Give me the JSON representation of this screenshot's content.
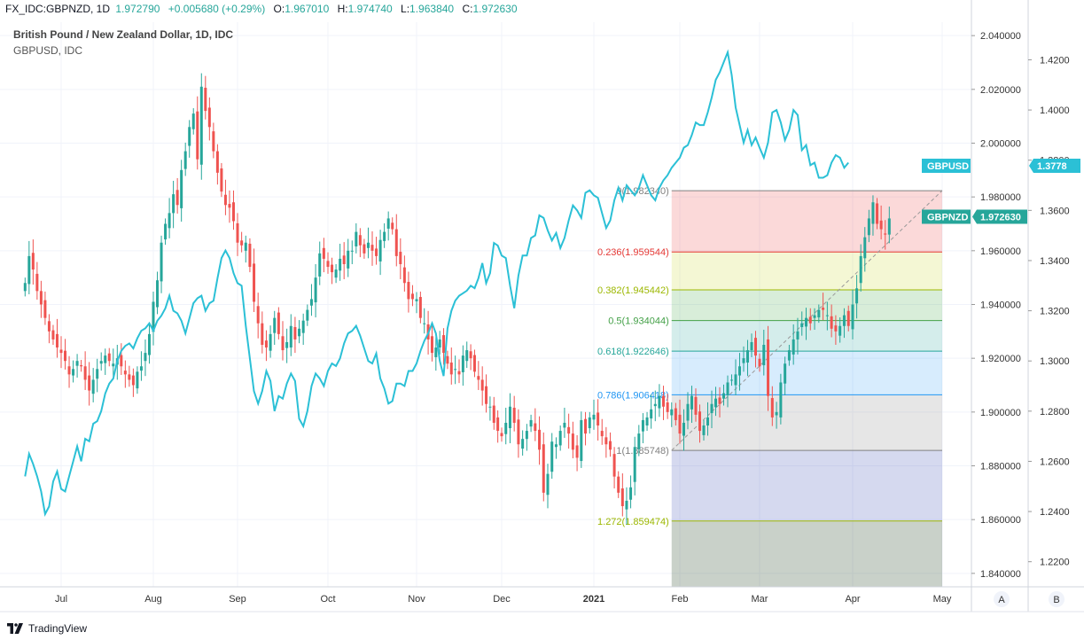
{
  "header": {
    "symbol": "FX_IDC:GBPNZD, 1D",
    "last": "1.972790",
    "change": "+0.005680 (+0.29%)",
    "open_label": "O:",
    "open": "1.967010",
    "high_label": "H:",
    "high": "1.974740",
    "low_label": "L:",
    "low": "1.963840",
    "close_label": "C:",
    "close": "1.972630"
  },
  "legend": {
    "title": "British Pound / New Zealand Dollar, 1D, IDC",
    "overlay": "GBPUSD, IDC"
  },
  "footer": {
    "brand": "TradingView"
  },
  "scale_buttons": [
    "A",
    "B"
  ],
  "colors": {
    "up": "#26a69a",
    "down": "#ef5350",
    "overlay": "#2bc0d6",
    "badge_nzd": "#26a69a",
    "badge_usd": "#2bc0d6"
  },
  "chart_data": {
    "type": "candlestick",
    "title": "British Pound / New Zealand Dollar, 1D, IDC",
    "x_ticks": [
      "Jul",
      "Aug",
      "Sep",
      "Oct",
      "Nov",
      "Dec",
      "2021",
      "Feb",
      "Mar",
      "Apr",
      "May"
    ],
    "y_left_ticks": [
      "2.040000",
      "2.020000",
      "2.000000",
      "1.980000",
      "1.960000",
      "1.940000",
      "1.920000",
      "1.900000",
      "1.880000",
      "1.860000",
      "1.840000"
    ],
    "y_right_ticks": [
      "1.4200",
      "1.4000",
      "1.3800",
      "1.3600",
      "1.3400",
      "1.3200",
      "1.3000",
      "1.2800",
      "1.2600",
      "1.2400",
      "1.2200"
    ],
    "ylim_gbpnzd": [
      1.835,
      2.045
    ],
    "ylim_gbpusd": [
      1.21,
      1.435
    ],
    "month_start_index": {
      "Jul": 9,
      "Aug": 32,
      "Sep": 53,
      "Oct": 75,
      "Nov": 97,
      "Dec": 119,
      "2021": 141,
      "Feb": 162,
      "Mar": 182,
      "Apr": 204,
      "May": 226
    },
    "last_index": 204,
    "gbpnzd_series": {
      "name": "GBPNZD",
      "close": [
        1.948,
        1.958,
        1.953,
        1.945,
        1.94,
        1.935,
        1.93,
        1.927,
        1.924,
        1.922,
        1.919,
        1.914,
        1.916,
        1.919,
        1.917,
        1.912,
        1.908,
        1.912,
        1.916,
        1.919,
        1.921,
        1.919,
        1.918,
        1.92,
        1.917,
        1.914,
        1.912,
        1.91,
        1.915,
        1.917,
        1.922,
        1.929,
        1.941,
        1.949,
        1.963,
        1.97,
        1.974,
        1.981,
        1.977,
        1.99,
        1.997,
        2.006,
        2.011,
        1.994,
        2.021,
        2.012,
        2.006,
        1.997,
        1.989,
        1.982,
        1.977,
        1.976,
        1.971,
        1.963,
        1.962,
        1.963,
        1.954,
        1.941,
        1.933,
        1.925,
        1.924,
        1.929,
        1.935,
        1.929,
        1.923,
        1.926,
        1.932,
        1.927,
        1.931,
        1.934,
        1.938,
        1.942,
        1.95,
        1.959,
        1.957,
        1.954,
        1.952,
        1.953,
        1.957,
        1.955,
        1.96,
        1.96,
        1.967,
        1.962,
        1.959,
        1.963,
        1.96,
        1.958,
        1.964,
        1.967,
        1.972,
        1.968,
        1.958,
        1.955,
        1.948,
        1.942,
        1.942,
        1.942,
        1.935,
        1.933,
        1.927,
        1.922,
        1.924,
        1.927,
        1.922,
        1.918,
        1.914,
        1.916,
        1.914,
        1.921,
        1.923,
        1.92,
        1.915,
        1.912,
        1.908,
        1.903,
        1.902,
        1.896,
        1.893,
        1.891,
        1.896,
        1.902,
        1.896,
        1.888,
        1.89,
        1.893,
        1.897,
        1.893,
        1.886,
        1.87,
        1.877,
        1.889,
        1.888,
        1.893,
        1.896,
        1.892,
        1.886,
        1.883,
        1.897,
        1.892,
        1.898,
        1.899,
        1.895,
        1.891,
        1.888,
        1.886,
        1.876,
        1.87,
        1.865,
        1.867,
        1.872,
        1.887,
        1.892,
        1.897,
        1.898,
        1.901,
        1.903,
        1.906,
        1.902,
        1.9,
        1.901,
        1.897,
        1.892,
        1.896,
        1.903,
        1.906,
        1.899,
        1.893,
        1.895,
        1.898,
        1.903,
        1.905,
        1.903,
        1.907,
        1.911,
        1.912,
        1.914,
        1.917,
        1.92,
        1.923,
        1.926,
        1.921,
        1.917,
        1.925,
        1.906,
        1.898,
        1.9,
        1.911,
        1.918,
        1.923,
        1.927,
        1.93,
        1.933,
        1.935,
        1.933,
        1.936,
        1.938,
        1.938,
        1.936,
        1.931,
        1.93,
        1.932,
        1.936,
        1.932,
        1.94,
        1.946,
        1.958,
        1.965,
        1.972,
        1.978,
        1.97,
        1.968,
        1.966,
        1.972
      ],
      "reference_labels": [
        "GBPNZD",
        "1.972630"
      ]
    },
    "gbpusd_series": {
      "name": "GBPUSD",
      "values": [
        1.254,
        1.263,
        1.259,
        1.254,
        1.248,
        1.239,
        1.242,
        1.252,
        1.256,
        1.249,
        1.248,
        1.254,
        1.26,
        1.266,
        1.26,
        1.269,
        1.268,
        1.275,
        1.276,
        1.28,
        1.287,
        1.291,
        1.293,
        1.3,
        1.304,
        1.306,
        1.307,
        1.305,
        1.309,
        1.312,
        1.313,
        1.315,
        1.312,
        1.316,
        1.318,
        1.321,
        1.326,
        1.32,
        1.319,
        1.316,
        1.311,
        1.317,
        1.323,
        1.325,
        1.326,
        1.32,
        1.323,
        1.324,
        1.333,
        1.341,
        1.344,
        1.341,
        1.335,
        1.331,
        1.33,
        1.314,
        1.301,
        1.288,
        1.283,
        1.288,
        1.296,
        1.292,
        1.28,
        1.286,
        1.285,
        1.291,
        1.295,
        1.292,
        1.277,
        1.274,
        1.28,
        1.29,
        1.295,
        1.293,
        1.29,
        1.296,
        1.299,
        1.298,
        1.301,
        1.307,
        1.311,
        1.312,
        1.314,
        1.31,
        1.305,
        1.3,
        1.299,
        1.303,
        1.293,
        1.289,
        1.283,
        1.284,
        1.291,
        1.291,
        1.29,
        1.296,
        1.296,
        1.299,
        1.304,
        1.308,
        1.311,
        1.315,
        1.311,
        1.3,
        1.294,
        1.313,
        1.32,
        1.324,
        1.326,
        1.327,
        1.328,
        1.33,
        1.329,
        1.333,
        1.339,
        1.331,
        1.335,
        1.347,
        1.346,
        1.342,
        1.341,
        1.33,
        1.321,
        1.334,
        1.342,
        1.342,
        1.349,
        1.35,
        1.358,
        1.357,
        1.352,
        1.348,
        1.351,
        1.345,
        1.349,
        1.356,
        1.362,
        1.36,
        1.357,
        1.367,
        1.368,
        1.366,
        1.365,
        1.359,
        1.353,
        1.356,
        1.364,
        1.369,
        1.364,
        1.37,
        1.368,
        1.366,
        1.369,
        1.374,
        1.37,
        1.366,
        1.364,
        1.369,
        1.372,
        1.374,
        1.377,
        1.379,
        1.381,
        1.385,
        1.386,
        1.39,
        1.395,
        1.394,
        1.394,
        1.399,
        1.405,
        1.412,
        1.415,
        1.419,
        1.423,
        1.414,
        1.401,
        1.394,
        1.387,
        1.392,
        1.386,
        1.389,
        1.385,
        1.381,
        1.387,
        1.399,
        1.4,
        1.395,
        1.388,
        1.392,
        1.4,
        1.398,
        1.384,
        1.386,
        1.378,
        1.379,
        1.373,
        1.373,
        1.374,
        1.379,
        1.382,
        1.381,
        1.377,
        1.379
      ],
      "reference_labels": [
        "GBPUSD",
        "1.3778"
      ]
    },
    "fibonacci": {
      "start_index": 160,
      "end_index": 226,
      "low": 1.885748,
      "high": 1.98234,
      "levels": [
        {
          "label": "0(1.982340)",
          "price": 1.98234,
          "color": "#808080",
          "fill": "rgba(239,83,80,0.22)"
        },
        {
          "label": "0.236(1.959544)",
          "price": 1.959544,
          "color": "#e53935",
          "fill": "rgba(205,220,57,0.22)"
        },
        {
          "label": "0.382(1.945442)",
          "price": 1.945442,
          "color": "#9cb700",
          "fill": "rgba(76,175,80,0.22)"
        },
        {
          "label": "0.5(1.934044)",
          "price": 1.934044,
          "color": "#43a047",
          "fill": "rgba(38,166,154,0.20)"
        },
        {
          "label": "0.618(1.922646)",
          "price": 1.922646,
          "color": "#26a69a",
          "fill": "rgba(33,150,243,0.18)"
        },
        {
          "label": "0.786(1.906418)",
          "price": 1.906418,
          "color": "#2196f3",
          "fill": "rgba(128,128,128,0.20)"
        },
        {
          "label": "1(1.885748)",
          "price": 1.885748,
          "color": "#808080",
          "fill": "rgba(63,81,181,0.22)"
        },
        {
          "label": "1.272(1.859474)",
          "price": 1.859474,
          "color": "#9cb700",
          "fill": "rgba(60,90,60,0.28)"
        }
      ]
    },
    "grid": true
  }
}
